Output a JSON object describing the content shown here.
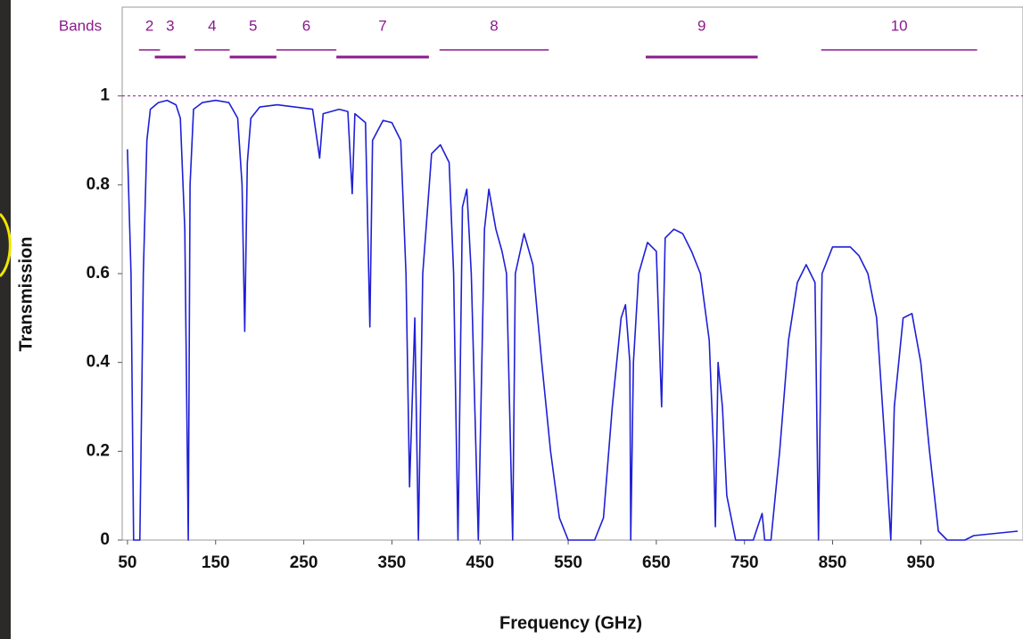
{
  "chart_data": {
    "type": "line",
    "x_label": "Frequency (GHz)",
    "y_label": "Transmission",
    "x": [
      50,
      54,
      57,
      64,
      68,
      72,
      76,
      85,
      95,
      105,
      110,
      115,
      119,
      121,
      125,
      135,
      150,
      165,
      175,
      180,
      183,
      186,
      190,
      200,
      220,
      240,
      260,
      268,
      272,
      290,
      300,
      305,
      308,
      320,
      325,
      328,
      340,
      350,
      360,
      366,
      370,
      376,
      380,
      385,
      395,
      405,
      415,
      420,
      425,
      430,
      435,
      440,
      448,
      455,
      460,
      468,
      475,
      480,
      487,
      490,
      500,
      510,
      520,
      530,
      540,
      550,
      580,
      590,
      600,
      610,
      615,
      620,
      621,
      624,
      630,
      640,
      650,
      656,
      660,
      670,
      680,
      690,
      700,
      710,
      715,
      717,
      720,
      725,
      730,
      740,
      760,
      765,
      770,
      773,
      780,
      790,
      800,
      810,
      820,
      830,
      834,
      838,
      850,
      860,
      870,
      880,
      890,
      900,
      910,
      916,
      920,
      930,
      940,
      950,
      960,
      970,
      980,
      1000,
      1010,
      1060
    ],
    "series": [
      {
        "name": "Transmission",
        "color": "#1f1fd6",
        "values": [
          0.88,
          0.6,
          0,
          0,
          0.6,
          0.9,
          0.97,
          0.985,
          0.99,
          0.98,
          0.95,
          0.7,
          0,
          0.8,
          0.97,
          0.985,
          0.99,
          0.985,
          0.95,
          0.8,
          0.47,
          0.85,
          0.95,
          0.975,
          0.98,
          0.975,
          0.97,
          0.86,
          0.96,
          0.97,
          0.965,
          0.78,
          0.96,
          0.94,
          0.48,
          0.9,
          0.945,
          0.94,
          0.9,
          0.6,
          0.12,
          0.5,
          0,
          0.6,
          0.87,
          0.89,
          0.85,
          0.6,
          0,
          0.75,
          0.79,
          0.6,
          0,
          0.7,
          0.79,
          0.7,
          0.65,
          0.6,
          0,
          0.6,
          0.69,
          0.62,
          0.4,
          0.2,
          0.05,
          0,
          0,
          0.05,
          0.3,
          0.5,
          0.53,
          0.4,
          0,
          0.4,
          0.6,
          0.67,
          0.65,
          0.3,
          0.68,
          0.7,
          0.69,
          0.65,
          0.6,
          0.45,
          0.2,
          0.03,
          0.4,
          0.3,
          0.1,
          0,
          0,
          0.03,
          0.06,
          0,
          0,
          0.2,
          0.45,
          0.58,
          0.62,
          0.58,
          0,
          0.6,
          0.66,
          0.66,
          0.66,
          0.64,
          0.6,
          0.5,
          0.2,
          0,
          0.3,
          0.5,
          0.51,
          0.4,
          0.2,
          0.02,
          0,
          0,
          0.01,
          0.02
        ]
      }
    ],
    "xlim": [
      44,
      1066
    ],
    "ylim": [
      0,
      1.2
    ],
    "xticks": [
      50,
      150,
      250,
      350,
      450,
      550,
      650,
      750,
      850,
      950
    ],
    "yticks": [
      0,
      0.2,
      0.4,
      0.6,
      0.8,
      1
    ],
    "reference_line": 1,
    "reference_color": "#8b1a8b",
    "bands_label": "Bands",
    "bands_color": "#8b1a8b",
    "bands": [
      {
        "label": "2",
        "range": [
          63,
          87
        ]
      },
      {
        "label": "3",
        "range": [
          81,
          116
        ]
      },
      {
        "label": "4",
        "range": [
          126,
          166
        ]
      },
      {
        "label": "5",
        "range": [
          166,
          219
        ]
      },
      {
        "label": "6",
        "range": [
          219,
          287
        ]
      },
      {
        "label": "7",
        "range": [
          287,
          392
        ]
      },
      {
        "label": "8",
        "range": [
          404,
          528
        ]
      },
      {
        "label": "9",
        "range": [
          638,
          765
        ]
      },
      {
        "label": "10",
        "range": [
          837,
          1014
        ]
      }
    ]
  }
}
